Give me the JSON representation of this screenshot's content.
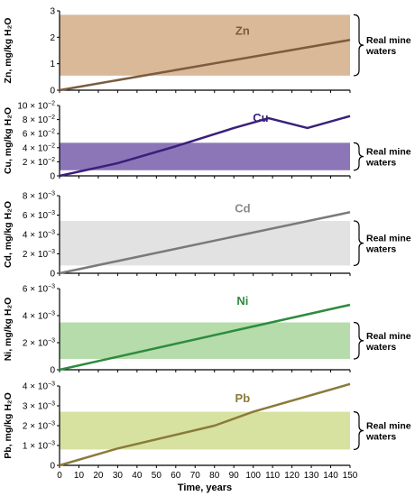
{
  "chart_data": [
    {
      "type": "line",
      "series_label": "Zn",
      "ylabel": "Zn, mg/kg H₂O",
      "ylim": [
        0,
        3
      ],
      "yticks": [
        {
          "m": "0",
          "e": ""
        },
        {
          "m": "1",
          "e": ""
        },
        {
          "m": "2",
          "e": ""
        },
        {
          "m": "3",
          "e": ""
        }
      ],
      "series": [
        {
          "name": "Zn",
          "x": [
            0,
            150
          ],
          "y": [
            0,
            1.9
          ]
        }
      ],
      "band": {
        "y0": 0.55,
        "y1": 2.85,
        "label_lines": [
          "Real mine",
          "waters"
        ]
      },
      "colors": {
        "line": "#7a5c3e",
        "band": "#d9b998",
        "label": "#7a5c3e"
      }
    },
    {
      "type": "line",
      "series_label": "Cu",
      "ylabel": "Cu, mg/kg H₂O",
      "ylim": [
        0,
        0.1
      ],
      "yticks": [
        {
          "m": "0",
          "e": ""
        },
        {
          "m": "2 × 10",
          "e": "−2"
        },
        {
          "m": "4 × 10",
          "e": "−2"
        },
        {
          "m": "6 × 10",
          "e": "−2"
        },
        {
          "m": "8 × 10",
          "e": "−2"
        },
        {
          "m": "10 × 10",
          "e": "−2"
        }
      ],
      "series": [
        {
          "name": "Cu",
          "x": [
            0,
            30,
            60,
            90,
            108,
            128,
            150
          ],
          "y": [
            0,
            0.018,
            0.042,
            0.068,
            0.082,
            0.068,
            0.085
          ]
        }
      ],
      "band": {
        "y0": 0.008,
        "y1": 0.047,
        "label_lines": [
          "Real mine",
          "waters"
        ]
      },
      "colors": {
        "line": "#3b1f7a",
        "band": "#8c76b8",
        "label": "#3b1f7a"
      }
    },
    {
      "type": "line",
      "series_label": "Cd",
      "ylabel": "Cd, mg/kg H₂O",
      "ylim": [
        0,
        0.008
      ],
      "yticks": [
        {
          "m": "0",
          "e": ""
        },
        {
          "m": "2 × 10",
          "e": "−3"
        },
        {
          "m": "4 × 10",
          "e": "−3"
        },
        {
          "m": "6 × 10",
          "e": "−3"
        },
        {
          "m": "8 × 10",
          "e": "−3"
        }
      ],
      "series": [
        {
          "name": "Cd",
          "x": [
            0,
            150
          ],
          "y": [
            0,
            0.0063
          ]
        }
      ],
      "band": {
        "y0": 0.0008,
        "y1": 0.0054,
        "label_lines": [
          "Real mine",
          "waters"
        ]
      },
      "colors": {
        "line": "#7a7a7a",
        "band": "#e2e2e2",
        "label": "#8a8a8a"
      }
    },
    {
      "type": "line",
      "series_label": "Ni",
      "ylabel": "Ni, mg/kg H₂O",
      "ylim": [
        0,
        0.006
      ],
      "yticks": [
        {
          "m": "0",
          "e": ""
        },
        {
          "m": "2 × 10",
          "e": "−3"
        },
        {
          "m": "4 × 10",
          "e": "−3"
        },
        {
          "m": "6 × 10",
          "e": "−3"
        }
      ],
      "series": [
        {
          "name": "Ni",
          "x": [
            0,
            150
          ],
          "y": [
            0,
            0.0048
          ]
        }
      ],
      "band": {
        "y0": 0.0008,
        "y1": 0.0035,
        "label_lines": [
          "Real mine",
          "waters"
        ]
      },
      "colors": {
        "line": "#2e8b3e",
        "band": "#b5dcaa",
        "label": "#2e8b3e"
      }
    },
    {
      "type": "line",
      "series_label": "Pb",
      "ylabel": "Pb, mg/kg H₂O",
      "ylim": [
        0,
        0.004
      ],
      "yticks": [
        {
          "m": "0",
          "e": ""
        },
        {
          "m": "1 × 10",
          "e": "−3"
        },
        {
          "m": "2 × 10",
          "e": "−3"
        },
        {
          "m": "3 × 10",
          "e": "−3"
        },
        {
          "m": "4 × 10",
          "e": "−3"
        }
      ],
      "series": [
        {
          "name": "Pb",
          "x": [
            0,
            30,
            80,
            100,
            150
          ],
          "y": [
            0,
            0.00085,
            0.002,
            0.0027,
            0.0041
          ]
        }
      ],
      "band": {
        "y0": 0.0008,
        "y1": 0.0027,
        "label_lines": [
          "Real mine",
          "waters"
        ]
      },
      "colors": {
        "line": "#8a7a3a",
        "band": "#d7e2a0",
        "label": "#8a7a3a"
      }
    }
  ],
  "x_axis": {
    "label": "Time, years",
    "xlim": [
      0,
      150
    ],
    "ticks": [
      0,
      10,
      20,
      30,
      40,
      50,
      60,
      70,
      80,
      90,
      100,
      110,
      120,
      130,
      140,
      150
    ]
  }
}
